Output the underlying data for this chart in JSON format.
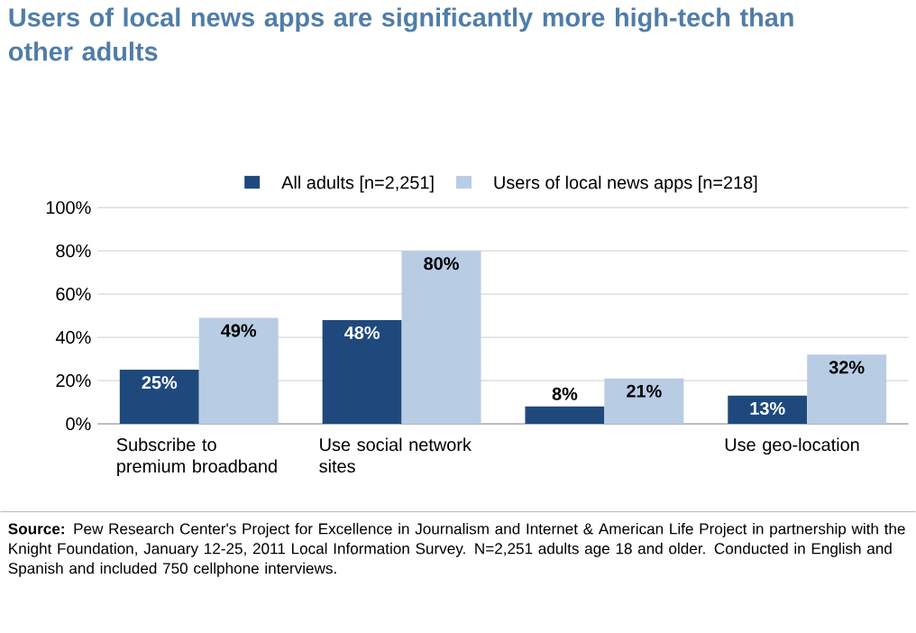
{
  "chart_data": {
    "type": "bar",
    "title": "Users of local news apps are significantly more high-tech than other adults",
    "categories": [
      "Subscribe to premium broadband",
      "Use social network sites",
      null,
      "Use geo-location"
    ],
    "series": [
      {
        "name": "All adults [n=2,251]",
        "color": "#1f497d",
        "values": [
          25,
          48,
          8,
          13
        ],
        "value_labels": [
          "25%",
          "48%",
          "8%",
          "13%"
        ]
      },
      {
        "name": "Users of local news apps [n=218]",
        "color": "#b8cce4",
        "values": [
          49,
          80,
          21,
          32
        ],
        "value_labels": [
          "49%",
          "80%",
          "21%",
          "32%"
        ]
      }
    ],
    "ylim": [
      0,
      100
    ],
    "yticks": [
      {
        "value": 0,
        "label": "0%"
      },
      {
        "value": 20,
        "label": "20%"
      },
      {
        "value": 40,
        "label": "40%"
      },
      {
        "value": 60,
        "label": "60%"
      },
      {
        "value": 80,
        "label": "80%"
      },
      {
        "value": 100,
        "label": "100%"
      }
    ],
    "grid": "y",
    "legend": "top",
    "annotations": [
      "**Source:** Pew Research Center's Project for Excellence in Journalism and Internet & American Life Project in partnership with the Knight Foundation, January 12-25, 2011 Local Information Survey. N=2,251 adults age 18 and older. Conducted in English and Spanish and included 750 cellphone interviews."
    ]
  }
}
